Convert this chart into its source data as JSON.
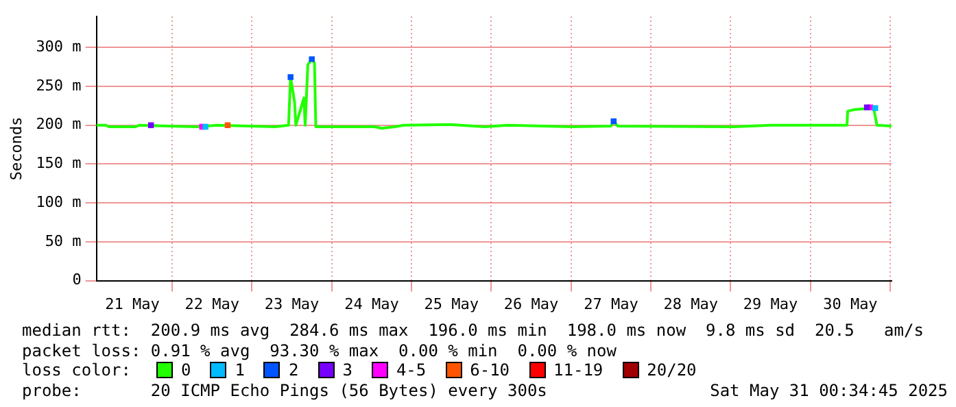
{
  "chart_data": {
    "type": "line",
    "ylabel": "Seconds",
    "legend_title": "loss color:",
    "legend": "bottom",
    "grid": true,
    "line_style": "solid",
    "xlim": [
      "2025-05-21T01:12",
      "2025-05-31T00:24"
    ],
    "xticks": [
      {
        "value": "2025-05-21T12:00",
        "label": "21 May"
      },
      {
        "value": "2025-05-22T00:00",
        "label": null
      },
      {
        "value": "2025-05-22T12:00",
        "label": "22 May"
      },
      {
        "value": "2025-05-23T00:00",
        "label": null
      },
      {
        "value": "2025-05-23T12:00",
        "label": "23 May"
      },
      {
        "value": "2025-05-24T00:00",
        "label": null
      },
      {
        "value": "2025-05-24T12:00",
        "label": "24 May"
      },
      {
        "value": "2025-05-25T00:00",
        "label": null
      },
      {
        "value": "2025-05-25T12:00",
        "label": "25 May"
      },
      {
        "value": "2025-05-26T00:00",
        "label": null
      },
      {
        "value": "2025-05-26T12:00",
        "label": "26 May"
      },
      {
        "value": "2025-05-27T00:00",
        "label": null
      },
      {
        "value": "2025-05-27T12:00",
        "label": "27 May"
      },
      {
        "value": "2025-05-28T00:00",
        "label": null
      },
      {
        "value": "2025-05-28T12:00",
        "label": "28 May"
      },
      {
        "value": "2025-05-29T00:00",
        "label": null
      },
      {
        "value": "2025-05-29T12:00",
        "label": "29 May"
      },
      {
        "value": "2025-05-30T00:00",
        "label": null
      },
      {
        "value": "2025-05-30T12:00",
        "label": "30 May"
      },
      {
        "value": "2025-05-31T00:00",
        "label": null
      }
    ],
    "ylim": [
      0,
      340
    ],
    "yticks": [
      0,
      {
        "value": 50,
        "label": "50 m"
      },
      {
        "value": 100,
        "label": "100 m"
      },
      {
        "value": 150,
        "label": "150 m"
      },
      {
        "value": 200,
        "label": "200 m"
      },
      {
        "value": 250,
        "label": "250 m"
      },
      {
        "value": 300,
        "label": "300 m"
      }
    ],
    "series": [
      {
        "name": "0",
        "type": "line",
        "marker": "none",
        "color": "#22ff00",
        "x": [
          "2025-05-21T01:12",
          "2025-05-21T04:00",
          "2025-05-21T05:00",
          "2025-05-21T13:00",
          "2025-05-21T14:00",
          "2025-05-22T07:30",
          "2025-05-22T13:30",
          "2025-05-23T07:00",
          "2025-05-23T11:00",
          "2025-05-23T11:36",
          "2025-05-23T12:48",
          "2025-05-23T13:12",
          "2025-05-23T15:36",
          "2025-05-23T16:00",
          "2025-05-23T16:48",
          "2025-05-23T18:00",
          "2025-05-23T18:48",
          "2025-05-23T19:12",
          "2025-05-24T13:00",
          "2025-05-24T15:00",
          "2025-05-24T19:00",
          "2025-05-24T21:36",
          "2025-05-25T11:36",
          "2025-05-25T22:00",
          "2025-05-26T05:00",
          "2025-05-27T00:00",
          "2025-05-27T12:00",
          "2025-05-27T12:48",
          "2025-05-27T14:00",
          "2025-05-29T01:00",
          "2025-05-29T12:00",
          "2025-05-30T11:00",
          "2025-05-30T11:12",
          "2025-05-30T13:00",
          "2025-05-30T18:48",
          "2025-05-30T19:00",
          "2025-05-30T20:00",
          "2025-05-31T00:24"
        ],
        "values": [
          200,
          200,
          198,
          198,
          200,
          198,
          200,
          198,
          200,
          262,
          230,
          200,
          235,
          200,
          278,
          285,
          280,
          198,
          198,
          196,
          198,
          200,
          201,
          198,
          200,
          198,
          199,
          205,
          199,
          198,
          200,
          200,
          218,
          220,
          222,
          223,
          200,
          199
        ]
      },
      {
        "name": "1",
        "type": "scatter",
        "marker": "square",
        "color": "#00bbff",
        "x": [
          "2025-05-22T10:00",
          "2025-05-30T19:30"
        ],
        "values": [
          198,
          222
        ]
      },
      {
        "name": "2",
        "type": "scatter",
        "marker": "square",
        "color": "#0055ff",
        "x": [
          "2025-05-23T11:36",
          "2025-05-23T18:00",
          "2025-05-27T12:48"
        ],
        "values": [
          262,
          285,
          205
        ]
      },
      {
        "name": "3",
        "type": "scatter",
        "marker": "square",
        "color": "#7700ff",
        "x": [
          "2025-05-21T17:36",
          "2025-05-30T17:00"
        ],
        "values": [
          200,
          223
        ]
      },
      {
        "name": "4-5",
        "type": "scatter",
        "marker": "square",
        "color": "#ff00ff",
        "x": [
          "2025-05-22T09:00",
          "2025-05-30T18:00"
        ],
        "values": [
          198,
          223
        ]
      },
      {
        "name": "6-10",
        "type": "scatter",
        "marker": "square",
        "color": "#ff5500",
        "x": [
          "2025-05-22T16:40"
        ],
        "values": [
          200
        ]
      },
      {
        "name": "11-19",
        "type": "scatter",
        "marker": "square",
        "color": "#ff0000"
      },
      {
        "name": "20/20",
        "type": "scatter",
        "marker": "square",
        "color": "#a10000"
      }
    ],
    "annotations": [
      "median rtt:  200.9 ms avg  284.6 ms max  196.0 ms min  198.0 ms now  9.8 ms sd  20.5   am/s",
      "packet loss: 0.91 % avg  93.30 % max  0.00 % min  0.00 % now",
      "probe:       20 ICMP Echo Pings (56 Bytes) every 300s",
      "Sat May 31 00:34:45 2025"
    ]
  }
}
